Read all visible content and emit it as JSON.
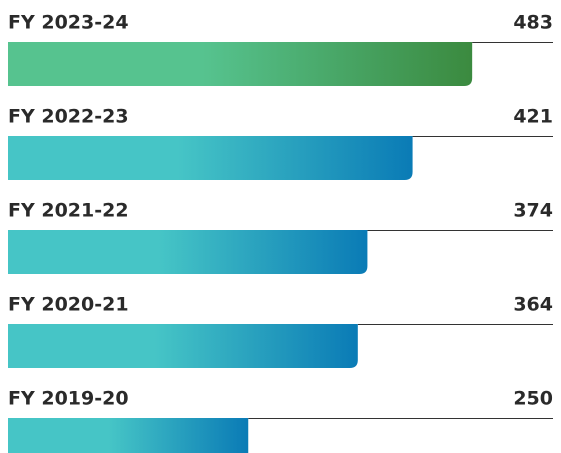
{
  "chart_data": {
    "type": "bar",
    "categories": [
      "FY 2023-24",
      "FY 2022-23",
      "FY 2021-22",
      "FY 2020-21",
      "FY 2019-20"
    ],
    "values": [
      483,
      421,
      374,
      364,
      250
    ],
    "colors": [
      [
        "#56c38f",
        "#3b8a3f"
      ],
      [
        "#46c5c6",
        "#0a7bb6"
      ],
      [
        "#46c5c6",
        "#0a7bb6"
      ],
      [
        "#46c5c6",
        "#0a7bb6"
      ],
      [
        "#46c5c6",
        "#0a7bb6"
      ]
    ]
  }
}
